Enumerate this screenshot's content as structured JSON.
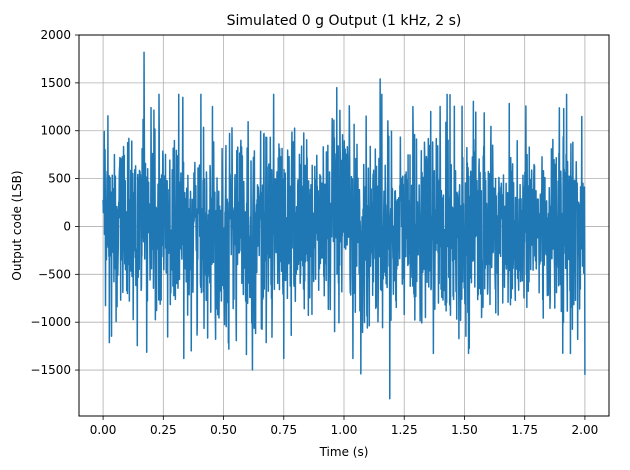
{
  "chart_data": {
    "type": "line",
    "title": "Simulated 0 g Output (1 kHz, 2 s)",
    "xlabel": "Time (s)",
    "ylabel": "Output code (LSB)",
    "xlim": [
      -0.1,
      2.1
    ],
    "ylim": [
      -1980,
      2000
    ],
    "xticks": [
      0.0,
      0.25,
      0.5,
      0.75,
      1.0,
      1.25,
      1.5,
      1.75,
      2.0
    ],
    "xtick_labels": [
      "0.00",
      "0.25",
      "0.50",
      "0.75",
      "1.00",
      "1.25",
      "1.50",
      "1.75",
      "2.00"
    ],
    "yticks": [
      -1500,
      -1000,
      -500,
      0,
      500,
      1000,
      1500,
      2000
    ],
    "ytick_labels": [
      "−1500",
      "−1000",
      "−500",
      "0",
      "500",
      "1000",
      "1500",
      "2000"
    ],
    "grid": true,
    "sample_rate_hz": 1000,
    "duration_s": 2,
    "noise_std_lsb": 500,
    "series": [
      {
        "color": "#1f77b4",
        "x_start": 0.0,
        "x_end": 2.0,
        "peaks": [
          {
            "x": 0.17,
            "y": 1820
          },
          {
            "x": 1.15,
            "y": 1540
          },
          {
            "x": 0.97,
            "y": 1450
          },
          {
            "x": 1.19,
            "y": -1800
          },
          {
            "x": 1.07,
            "y": -1540
          },
          {
            "x": 2.0,
            "y": -1550
          },
          {
            "x": 0.62,
            "y": -1500
          }
        ]
      }
    ]
  }
}
